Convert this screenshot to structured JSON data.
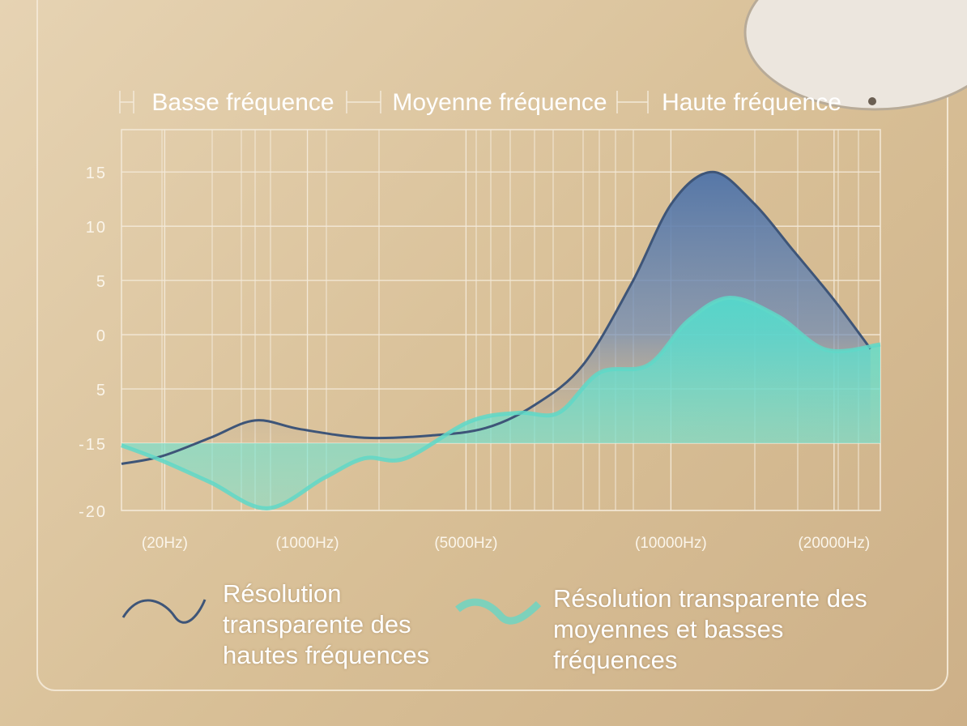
{
  "chart_data": {
    "type": "area",
    "headers": [
      "Basse fréquence",
      "Moyenne fréquence",
      "Haute fréquence"
    ],
    "x": [],
    "xlim": [
      0,
      100
    ],
    "xticks": [
      {
        "value": 5.7,
        "label": "(20Hz)"
      },
      {
        "value": 24.5,
        "label": "(1000Hz)"
      },
      {
        "value": 45.4,
        "label": "(5000Hz)"
      },
      {
        "value": 72.4,
        "label": "(10000Hz)"
      },
      {
        "value": 93.9,
        "label": "(20000Hz)"
      }
    ],
    "ylim": [
      -16.2,
      18.9
    ],
    "yticks": [
      15,
      10,
      5,
      0,
      {
        "value": -5,
        "label": "5"
      },
      {
        "value": -10,
        "label": "-15"
      },
      {
        "value": -16.2,
        "label": "-20"
      }
    ],
    "grid": true,
    "series": [
      {
        "name": "Résolution transparente des hautes fréquences",
        "color": "#3e5578",
        "x": [
          0,
          5.3,
          11.7,
          17.6,
          23.5,
          32,
          40.6,
          48,
          54.4,
          60.8,
          67.2,
          72.6,
          77.9,
          83.2,
          88.6,
          93.9,
          98.7
        ],
        "values": [
          -11.9,
          -11.2,
          -9.5,
          -7.9,
          -8.7,
          -9.5,
          -9.3,
          -8.6,
          -6.5,
          -2.8,
          4.7,
          12.2,
          15,
          12.2,
          7.7,
          3.2,
          -1.3
        ]
      },
      {
        "name": "Résolution transparente des moyennes et basses fréquences",
        "color": "#5fd8c8",
        "x": [
          0,
          5.3,
          11.7,
          19.2,
          26.7,
          32,
          37.4,
          45.9,
          52.3,
          57.6,
          63,
          69.4,
          74.7,
          80.1,
          86.5,
          92.9,
          100
        ],
        "values": [
          -10.2,
          -11.6,
          -13.6,
          -16.0,
          -13.2,
          -11.4,
          -11.4,
          -8.0,
          -7.2,
          -7.2,
          -3.5,
          -2.8,
          1.3,
          3.4,
          1.7,
          -1.4,
          -0.9
        ]
      }
    ]
  }
}
